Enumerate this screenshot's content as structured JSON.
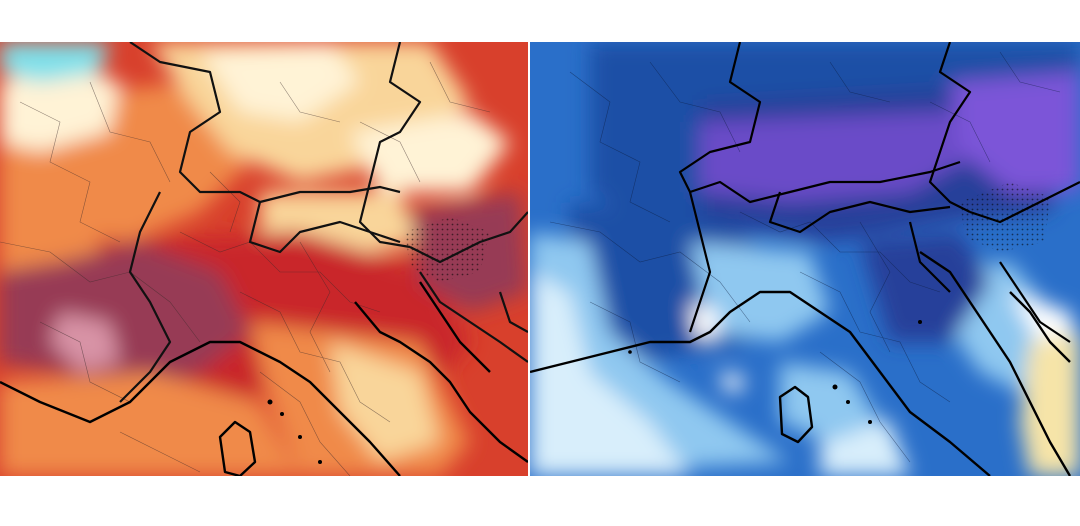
{
  "panels": [
    {
      "id": "warm-anomaly-map",
      "palette": {
        "background": "#d8402c",
        "light": "#fff3d6",
        "pale": "#f9d59a",
        "orange": "#f08a4a",
        "red": "#c9282a",
        "maroon": "#973a55",
        "pink": "#d893a6",
        "cyan": "#7fe0ea"
      }
    },
    {
      "id": "cold-anomaly-map",
      "palette": {
        "background": "#2a6fc9",
        "deep": "#1f4fa6",
        "navy": "#25409a",
        "purple": "#6a4bc8",
        "violet": "#7b55d8",
        "light": "#8fc8f0",
        "pale": "#d8eefb",
        "white": "#ffffff",
        "sand": "#f6e4a8"
      }
    }
  ],
  "map_features": [
    "coastline",
    "national-borders",
    "regional-borders"
  ]
}
